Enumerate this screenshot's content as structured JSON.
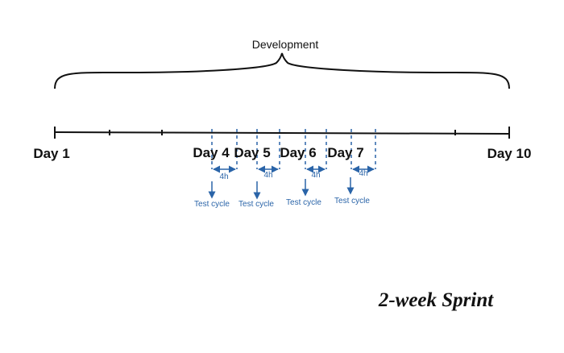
{
  "top_label": "Development",
  "axis": {
    "start_label": "Day 1",
    "end_label": "Day 10"
  },
  "days": [
    {
      "label": "Day 4",
      "interval": "4h",
      "note": "Test cycle"
    },
    {
      "label": "Day 5",
      "interval": "4h",
      "note": "Test cycle"
    },
    {
      "label": "Day 6",
      "interval": "4h",
      "note": "Test cycle"
    },
    {
      "label": "Day 7",
      "interval": "4h",
      "note": "Test cycle"
    }
  ],
  "footer_label": "2-week Sprint",
  "colors": {
    "line": "#111111",
    "accent": "#2a64a8"
  }
}
